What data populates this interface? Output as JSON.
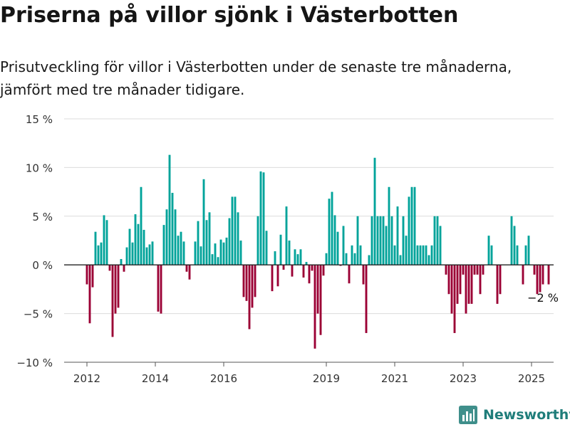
{
  "title": "Priserna på villor sjönk i Västerbotten",
  "subtitle": "Prisutveckling för villor i Västerbotten under de senaste tre månaderna, jämfört med tre månader tidigare.",
  "brand": {
    "name": "Newsworthy",
    "icon": "newsworthy-logo-icon"
  },
  "colors": {
    "positive": "#00a39a",
    "negative": "#9b0034",
    "grid": "#dcdcdc",
    "zero": "#222222",
    "text": "#333333"
  },
  "chart_data": {
    "type": "bar",
    "title": "Priserna på villor sjönk i Västerbotten",
    "xlabel": "",
    "ylabel": "",
    "ylim": [
      -10,
      15
    ],
    "yticks": [
      -10,
      -5,
      0,
      5,
      10,
      15
    ],
    "ytick_labels": [
      "−10 %",
      "−5 %",
      "0 %",
      "5 %",
      "10 %",
      "15 %"
    ],
    "x_start": "2012-01",
    "xticks": [
      "2012",
      "2014",
      "2016",
      "2019",
      "2021",
      "2023",
      "2025"
    ],
    "grid": true,
    "annotation": {
      "text": "−2 %",
      "month": "2025-05"
    },
    "values": [
      -2,
      -6,
      -2.3,
      3.4,
      2,
      2.3,
      5.1,
      4.6,
      -0.6,
      -7.4,
      -5,
      -4.4,
      0.6,
      -0.7,
      1.8,
      3.7,
      2.3,
      5.2,
      4.2,
      8,
      3.6,
      1.8,
      2.1,
      2.4,
      null,
      -4.8,
      -5,
      4.1,
      5.7,
      11.3,
      7.4,
      5.7,
      3,
      3.4,
      2.4,
      -0.7,
      -1.5,
      null,
      2.4,
      4.5,
      1.9,
      8.8,
      4.6,
      5.4,
      1.1,
      2.2,
      0.8,
      2.6,
      2.3,
      2.8,
      4.8,
      7,
      7,
      5.4,
      2.5,
      -3.3,
      -3.7,
      -6.6,
      -4.4,
      -3.3,
      5,
      9.6,
      9.5,
      3.5,
      null,
      -2.7,
      1.4,
      -2.2,
      3.1,
      -0.5,
      6,
      2.5,
      -1.2,
      1.6,
      1.1,
      1.6,
      -1.3,
      0.3,
      -1.9,
      -0.6,
      -8.6,
      -5,
      -7.2,
      -1.1,
      1.2,
      6.8,
      7.5,
      5.1,
      3.4,
      -0.1,
      4,
      1.2,
      -1.9,
      2,
      1.2,
      5,
      2,
      -2,
      -7,
      1,
      5,
      11,
      5,
      5,
      5,
      4,
      8,
      5,
      2,
      6,
      1,
      5,
      3,
      7,
      8,
      8,
      2,
      2,
      2,
      2,
      1,
      2,
      5,
      5,
      4,
      null,
      -1,
      -3,
      -5,
      -7,
      -4,
      -3,
      -1,
      -5,
      -4,
      -4,
      -1,
      -1,
      -3,
      -1,
      null,
      3,
      2,
      null,
      -4,
      -3,
      null,
      null,
      null,
      5,
      4,
      2,
      null,
      -2,
      2,
      3,
      null,
      -1,
      -3,
      -2.8,
      -2,
      null,
      -2
    ]
  }
}
